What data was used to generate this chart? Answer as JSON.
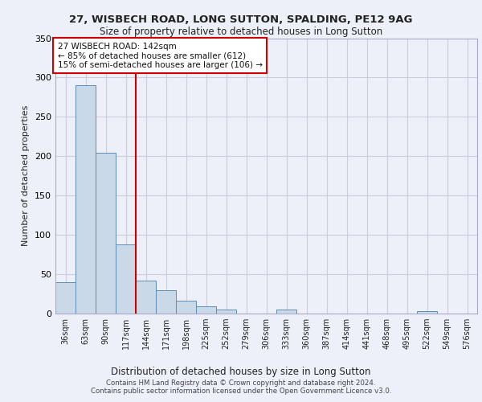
{
  "title_line1": "27, WISBECH ROAD, LONG SUTTON, SPALDING, PE12 9AG",
  "title_line2": "Size of property relative to detached houses in Long Sutton",
  "xlabel": "Distribution of detached houses by size in Long Sutton",
  "ylabel": "Number of detached properties",
  "footer_line1": "Contains HM Land Registry data © Crown copyright and database right 2024.",
  "footer_line2": "Contains public sector information licensed under the Open Government Licence v3.0.",
  "bin_labels": [
    "36sqm",
    "63sqm",
    "90sqm",
    "117sqm",
    "144sqm",
    "171sqm",
    "198sqm",
    "225sqm",
    "252sqm",
    "279sqm",
    "306sqm",
    "333sqm",
    "360sqm",
    "387sqm",
    "414sqm",
    "441sqm",
    "468sqm",
    "495sqm",
    "522sqm",
    "549sqm",
    "576sqm"
  ],
  "bar_values": [
    40,
    290,
    204,
    88,
    42,
    30,
    16,
    9,
    5,
    0,
    0,
    5,
    0,
    0,
    0,
    0,
    0,
    0,
    3,
    0,
    0
  ],
  "bar_color": "#c9d9e8",
  "bar_edge_color": "#5b8db8",
  "vline_color": "#cc0000",
  "vline_x_index": 3.5,
  "annotation_text_line1": "27 WISBECH ROAD: 142sqm",
  "annotation_text_line2": "← 85% of detached houses are smaller (612)",
  "annotation_text_line3": "15% of semi-detached houses are larger (106) →",
  "annotation_box_color": "#cc0000",
  "ylim": [
    0,
    350
  ],
  "yticks": [
    0,
    50,
    100,
    150,
    200,
    250,
    300,
    350
  ],
  "grid_color": "#ccccdd",
  "bg_color": "#edf0f8",
  "plot_bg_color": "#edf0f8"
}
